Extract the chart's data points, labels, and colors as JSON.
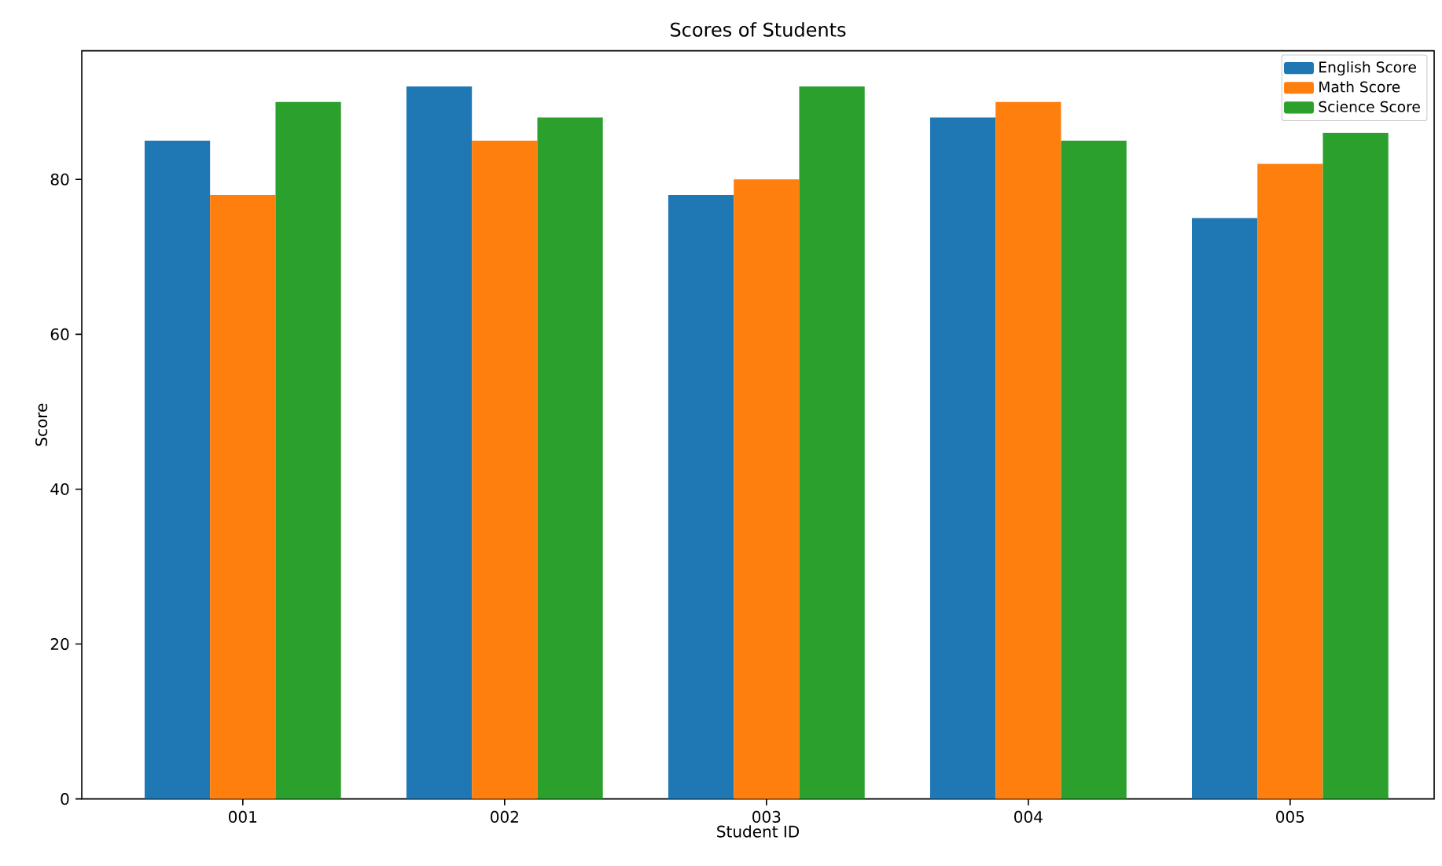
{
  "chart_data": {
    "type": "bar",
    "title": "Scores of Students",
    "xlabel": "Student ID",
    "ylabel": "Score",
    "categories": [
      "001",
      "002",
      "003",
      "004",
      "005"
    ],
    "series": [
      {
        "name": "English Score",
        "color": "#1f77b4",
        "values": [
          85,
          92,
          78,
          88,
          75
        ]
      },
      {
        "name": "Math Score",
        "color": "#ff7f0e",
        "values": [
          78,
          85,
          80,
          90,
          82
        ]
      },
      {
        "name": "Science Score",
        "color": "#2ca02c",
        "values": [
          90,
          88,
          92,
          85,
          86
        ]
      }
    ],
    "ylim": [
      0,
      96.6
    ],
    "yticks": [
      0,
      20,
      40,
      60,
      80
    ],
    "grid": false,
    "legend": "top right"
  }
}
